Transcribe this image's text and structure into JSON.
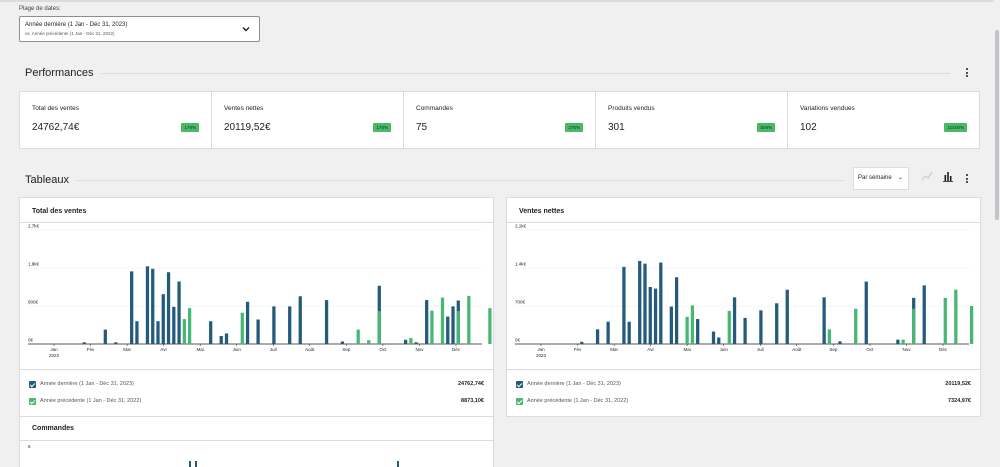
{
  "date_range": {
    "label": "Plage de dates:",
    "primary": "Année dernière (1 Jan - Déc 31, 2023)",
    "secondary": "vs. Année précédente (1 Jan - Déc 31, 2022)"
  },
  "performances": {
    "title": "Performances",
    "kpis": [
      {
        "label": "Total des ventes",
        "value": "24762,74€",
        "delta": "179%"
      },
      {
        "label": "Ventes nettes",
        "value": "20119,52€",
        "delta": "175%"
      },
      {
        "label": "Commandes",
        "value": "75",
        "delta": "275%"
      },
      {
        "label": "Produits vendus",
        "value": "301",
        "delta": "509%"
      },
      {
        "label": "Variations vendues",
        "value": "102",
        "delta": "10100%"
      }
    ]
  },
  "tableaux": {
    "title": "Tableaux",
    "interval": "Par semaine"
  },
  "colors": {
    "current": "#245b7c",
    "previous": "#47b874",
    "badge": "#4ab866"
  },
  "icons": [
    "chevron-down-icon",
    "kebab-menu-icon",
    "line-chart-icon",
    "bar-chart-icon",
    "checkbox-checked-icon"
  ],
  "chart_data": [
    {
      "type": "bar",
      "title": "Total des ventes",
      "y_ticks": [
        "2,7k€",
        "1,8k€",
        "900€",
        "0€"
      ],
      "ylim": [
        0,
        2700
      ],
      "x_ticks": [
        "Jan",
        "Fév",
        "Mar",
        "Avr",
        "Mai",
        "Juin",
        "Juil",
        "Août",
        "Sep",
        "Oct",
        "Nov",
        "Déc"
      ],
      "x_year": "2023",
      "series": [
        {
          "name": "Année dernière (1 Jan - Déc 31, 2023)",
          "total": "24762,74€",
          "values": [
            0,
            0,
            0,
            0,
            0,
            0,
            40,
            0,
            0,
            0,
            340,
            0,
            40,
            0,
            0,
            1720,
            540,
            0,
            1840,
            1780,
            540,
            1180,
            1700,
            880,
            1480,
            0,
            0,
            0,
            0,
            0,
            540,
            0,
            190,
            250,
            0,
            0,
            0,
            1000,
            0,
            580,
            0,
            0,
            890,
            0,
            0,
            890,
            0,
            1130,
            0,
            0,
            0,
            0,
            1040,
            0,
            0,
            60,
            0,
            0,
            0,
            0,
            0,
            0,
            1380,
            0,
            0,
            0,
            0,
            100,
            0,
            40,
            0,
            1040,
            0,
            0,
            0,
            650,
            890,
            1030,
            0,
            0,
            0,
            0
          ]
        },
        {
          "name": "Année précédente (1 Jan - Déc 31, 2022)",
          "total": "8873,10€",
          "values": [
            0,
            0,
            0,
            0,
            0,
            0,
            0,
            0,
            0,
            0,
            0,
            0,
            0,
            0,
            0,
            0,
            0,
            0,
            0,
            0,
            0,
            0,
            0,
            0,
            0,
            590,
            850,
            0,
            0,
            0,
            0,
            0,
            0,
            0,
            0,
            0,
            740,
            0,
            0,
            0,
            0,
            0,
            0,
            0,
            0,
            0,
            0,
            0,
            0,
            0,
            0,
            0,
            0,
            0,
            0,
            0,
            0,
            0,
            340,
            0,
            90,
            0,
            780,
            0,
            0,
            0,
            0,
            0,
            140,
            0,
            0,
            0,
            790,
            0,
            1100,
            0,
            0,
            780,
            0,
            1140,
            0,
            0,
            0,
            850,
            0,
            0
          ]
        }
      ]
    },
    {
      "type": "bar",
      "title": "Ventes nettes",
      "y_ticks": [
        "2,1k€",
        "1,4k€",
        "700€",
        "0€"
      ],
      "ylim": [
        0,
        2100
      ],
      "x_ticks": [
        "Jan",
        "Fév",
        "Mar",
        "Avr",
        "Mai",
        "Juin",
        "Juil",
        "Août",
        "Sep",
        "Oct",
        "Nov",
        "Déc"
      ],
      "x_year": "2023",
      "series": [
        {
          "name": "Année dernière (1 Jan - Déc 31, 2023)",
          "total": "20119,52€",
          "values": [
            0,
            0,
            0,
            0,
            0,
            0,
            0,
            0,
            40,
            0,
            0,
            270,
            0,
            410,
            0,
            0,
            1420,
            410,
            0,
            1530,
            1480,
            1050,
            1020,
            1500,
            0,
            690,
            1230,
            0,
            0,
            0,
            460,
            0,
            0,
            230,
            120,
            0,
            0,
            860,
            0,
            480,
            0,
            0,
            620,
            0,
            0,
            750,
            0,
            1000,
            0,
            0,
            0,
            0,
            0,
            0,
            860,
            0,
            0,
            50,
            0,
            0,
            0,
            0,
            1150,
            0,
            0,
            0,
            0,
            0,
            80,
            0,
            0,
            850,
            0,
            1080,
            0,
            0,
            0,
            0,
            0,
            0,
            0,
            0
          ]
        },
        {
          "name": "Année précédente (1 Jan - Déc 31, 2022)",
          "total": "7324,97€",
          "values": [
            0,
            0,
            0,
            0,
            0,
            0,
            0,
            0,
            0,
            0,
            0,
            0,
            0,
            0,
            0,
            0,
            0,
            0,
            0,
            0,
            0,
            0,
            0,
            0,
            0,
            0,
            0,
            0,
            500,
            710,
            0,
            0,
            0,
            0,
            0,
            0,
            610,
            0,
            0,
            0,
            0,
            0,
            0,
            0,
            0,
            0,
            0,
            0,
            0,
            0,
            0,
            0,
            0,
            0,
            0,
            270,
            0,
            0,
            0,
            0,
            650,
            0,
            0,
            0,
            0,
            0,
            0,
            0,
            0,
            80,
            0,
            650,
            0,
            0,
            0,
            0,
            0,
            850,
            0,
            1000,
            0,
            0,
            700
          ]
        }
      ]
    },
    {
      "type": "bar",
      "title": "Commandes",
      "y_ticks": [
        "6"
      ]
    }
  ]
}
